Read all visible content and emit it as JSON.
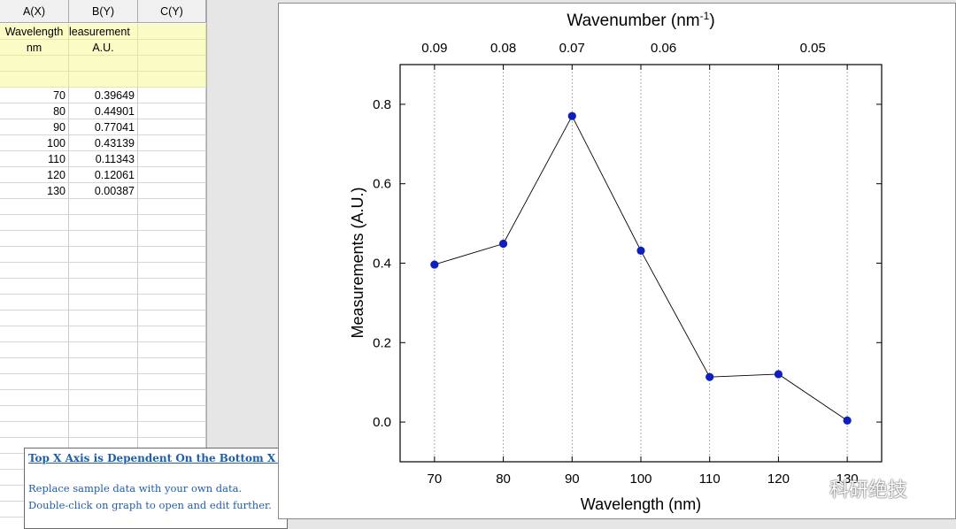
{
  "spreadsheet": {
    "columns": [
      "A(X)",
      "B(Y)",
      "C(Y)"
    ],
    "long_names": [
      "Wavelength",
      "leasurement",
      ""
    ],
    "units": [
      "nm",
      "A.U.",
      ""
    ],
    "rows": [
      [
        "70",
        "0.39649",
        ""
      ],
      [
        "80",
        "0.44901",
        ""
      ],
      [
        "90",
        "0.77041",
        ""
      ],
      [
        "100",
        "0.43139",
        ""
      ],
      [
        "110",
        "0.11343",
        ""
      ],
      [
        "120",
        "0.12061",
        ""
      ],
      [
        "130",
        "0.00387",
        ""
      ]
    ]
  },
  "info_box": {
    "title": "Top X Axis is Dependent On the Bottom X Axi",
    "line1": "Replace sample data with your own data.",
    "line2": "Double-click on graph to open and edit further."
  },
  "watermark": {
    "text": "科研绝技",
    "icon": "wechat-icon"
  },
  "chart_data": {
    "type": "line",
    "x": [
      70,
      80,
      90,
      100,
      110,
      120,
      130
    ],
    "y": [
      0.39649,
      0.44901,
      0.77041,
      0.43139,
      0.11343,
      0.12061,
      0.00387
    ],
    "xlabel": "Wavelength (nm)",
    "ylabel": "Measurements (A.U.)",
    "top_xlabel_main": "Wavenumber (nm",
    "top_xlabel_sup": "-1",
    "top_xlabel_end": ")",
    "xlim": [
      65,
      135
    ],
    "ylim": [
      -0.1,
      0.9
    ],
    "x_ticks": [
      70,
      80,
      90,
      100,
      110,
      120,
      130
    ],
    "x_tick_labels": [
      "70",
      "80",
      "90",
      "100",
      "110",
      "120",
      "130"
    ],
    "y_ticks": [
      0.0,
      0.2,
      0.4,
      0.6,
      0.8
    ],
    "y_tick_labels": [
      "0.0",
      "0.2",
      "0.4",
      "0.6",
      "0.8"
    ],
    "top_ticks_at_x": [
      70,
      80,
      90,
      100,
      110,
      120,
      130
    ],
    "top_tick_labels": [
      {
        "x": 70,
        "label": "0.09"
      },
      {
        "x": 80,
        "label": "0.08"
      },
      {
        "x": 90,
        "label": "0.07"
      },
      {
        "x": 103.3,
        "label": "0.06"
      },
      {
        "x": 125,
        "label": "0.05"
      }
    ],
    "grid": "vertical dashed",
    "marker_color": "#0f1fbf",
    "line_color": "#000000"
  }
}
